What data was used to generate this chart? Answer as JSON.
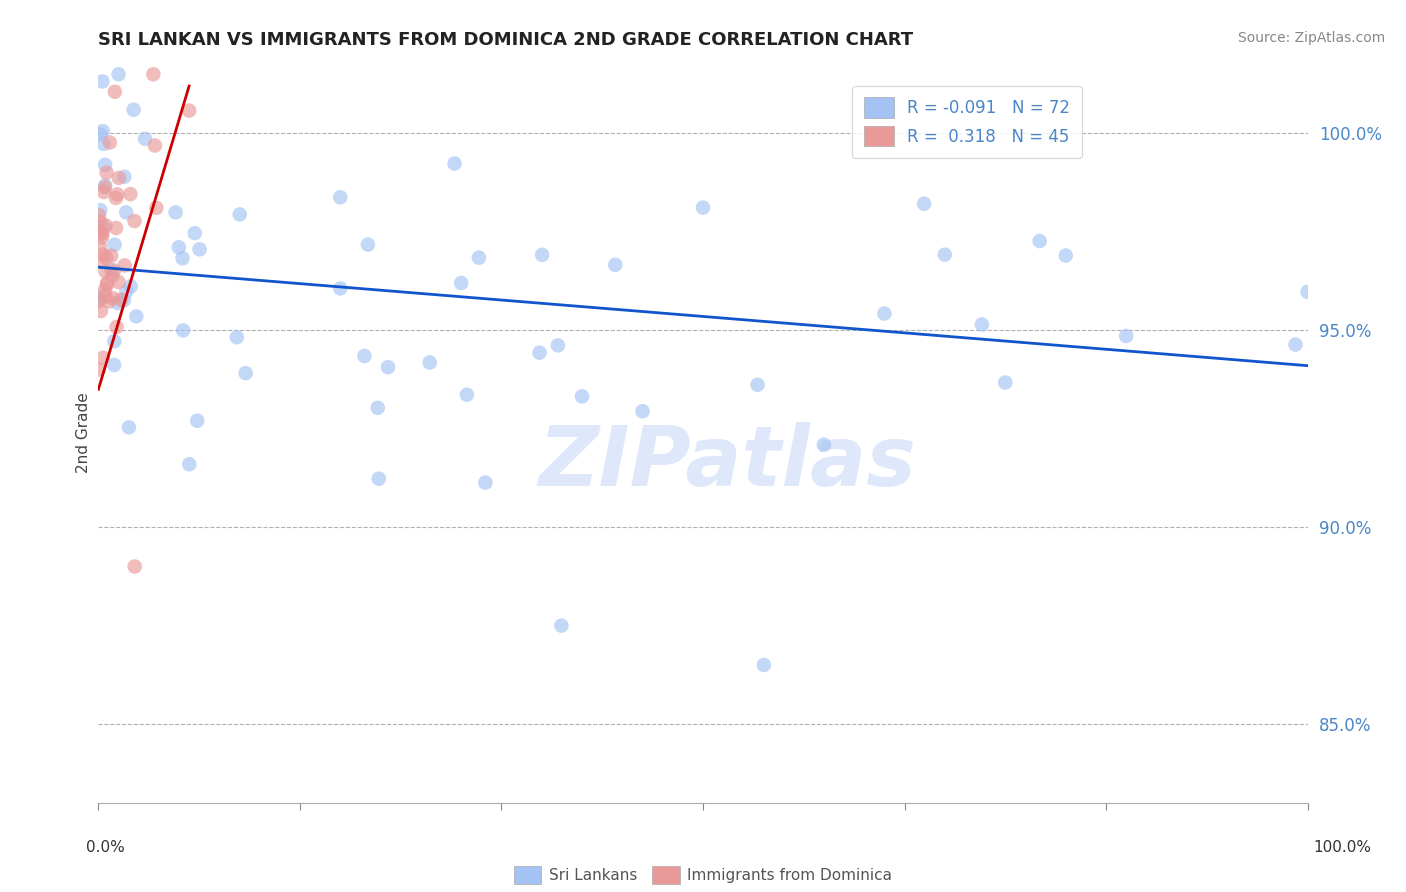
{
  "title": "SRI LANKAN VS IMMIGRANTS FROM DOMINICA 2ND GRADE CORRELATION CHART",
  "source": "Source: ZipAtlas.com",
  "legend_label1": "Sri Lankans",
  "legend_label2": "Immigrants from Dominica",
  "ylabel": "2nd Grade",
  "R1": -0.091,
  "N1": 72,
  "R2": 0.318,
  "N2": 45,
  "blue_color": "#a4c2f4",
  "pink_color": "#ea9999",
  "blue_line_color": "#1155cc",
  "pink_line_color": "#cc0000",
  "right_tick_color": "#4a86c8",
  "xmin": 0.0,
  "xmax": 100.0,
  "ymin": 83.0,
  "ymax": 101.8,
  "yticks": [
    85.0,
    90.0,
    95.0,
    100.0
  ],
  "blue_line_x0": 0.0,
  "blue_line_x1": 100.0,
  "blue_line_y0": 96.6,
  "blue_line_y1": 94.1,
  "pink_line_x0": 0.0,
  "pink_line_x1": 7.5,
  "pink_line_y0": 93.5,
  "pink_line_y1": 101.2,
  "watermark_text": "ZIPatlas",
  "watermark_color": "#c9daf8",
  "watermark_alpha": 0.6,
  "dot_size": 110,
  "dot_alpha": 0.65
}
